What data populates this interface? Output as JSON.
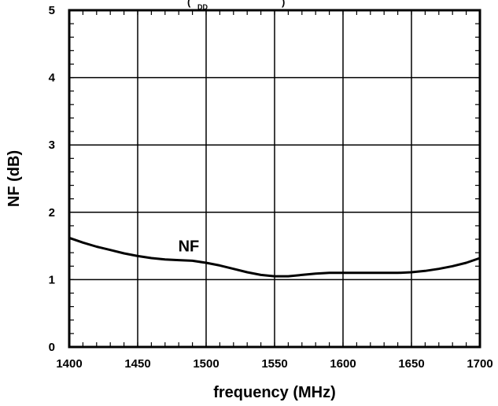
{
  "top_fragment": {
    "paren": "(",
    "sub": "DD",
    "close": ")"
  },
  "chart_data": {
    "type": "line",
    "xlabel": "frequency (MHz)",
    "ylabel": "NF (dB)",
    "xlim": [
      1400,
      1700
    ],
    "ylim": [
      0,
      5
    ],
    "x_ticks": [
      1400,
      1450,
      1500,
      1550,
      1600,
      1650,
      1700
    ],
    "y_ticks": [
      0,
      1,
      2,
      3,
      4,
      5
    ],
    "grid": true,
    "series": [
      {
        "name": "NF",
        "x": [
          1400,
          1410,
          1420,
          1430,
          1440,
          1450,
          1460,
          1470,
          1480,
          1490,
          1500,
          1510,
          1520,
          1530,
          1540,
          1550,
          1560,
          1570,
          1580,
          1590,
          1600,
          1610,
          1620,
          1630,
          1640,
          1650,
          1660,
          1670,
          1680,
          1690,
          1700
        ],
        "y": [
          1.62,
          1.55,
          1.49,
          1.44,
          1.39,
          1.35,
          1.32,
          1.3,
          1.29,
          1.28,
          1.25,
          1.21,
          1.16,
          1.11,
          1.07,
          1.05,
          1.05,
          1.07,
          1.09,
          1.1,
          1.1,
          1.1,
          1.1,
          1.1,
          1.1,
          1.11,
          1.13,
          1.16,
          1.2,
          1.25,
          1.32
        ]
      }
    ],
    "annotations": [
      {
        "text": "NF",
        "x": 1490,
        "y": 1.5
      }
    ]
  }
}
